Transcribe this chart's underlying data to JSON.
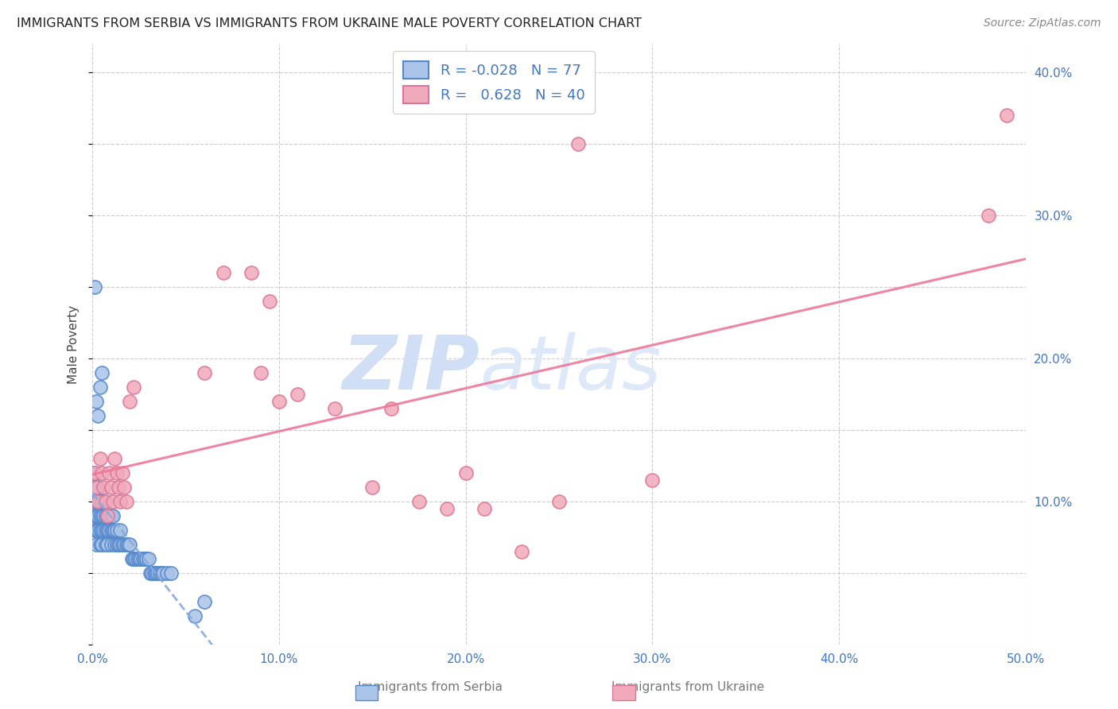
{
  "title": "IMMIGRANTS FROM SERBIA VS IMMIGRANTS FROM UKRAINE MALE POVERTY CORRELATION CHART",
  "source": "Source: ZipAtlas.com",
  "ylabel": "Male Poverty",
  "xlim": [
    0.0,
    0.5
  ],
  "ylim": [
    0.0,
    0.42
  ],
  "xticks": [
    0.0,
    0.1,
    0.2,
    0.3,
    0.4,
    0.5
  ],
  "xticklabels": [
    "0.0%",
    "10.0%",
    "20.0%",
    "30.0%",
    "40.0%",
    "50.0%"
  ],
  "yticks": [
    0.0,
    0.1,
    0.2,
    0.3,
    0.4
  ],
  "yticklabels_right": [
    "",
    "10.0%",
    "20.0%",
    "30.0%",
    "40.0%"
  ],
  "serbia_color": "#aac4e8",
  "ukraine_color": "#f0aabb",
  "serbia_edge": "#5588cc",
  "ukraine_edge": "#dd7799",
  "serbia_R": "-0.028",
  "serbia_N": "77",
  "ukraine_R": "0.628",
  "ukraine_N": "40",
  "serbia_line_color": "#88aadd",
  "ukraine_line_color": "#ee7799",
  "watermark_color": "#d0dff5",
  "serbia_x": [
    0.001,
    0.001,
    0.001,
    0.001,
    0.001,
    0.002,
    0.002,
    0.002,
    0.002,
    0.002,
    0.003,
    0.003,
    0.003,
    0.003,
    0.004,
    0.004,
    0.004,
    0.004,
    0.005,
    0.005,
    0.005,
    0.005,
    0.006,
    0.006,
    0.006,
    0.007,
    0.007,
    0.007,
    0.008,
    0.008,
    0.008,
    0.009,
    0.009,
    0.01,
    0.01,
    0.01,
    0.011,
    0.011,
    0.012,
    0.012,
    0.013,
    0.013,
    0.014,
    0.015,
    0.015,
    0.016,
    0.017,
    0.018,
    0.019,
    0.02,
    0.021,
    0.022,
    0.023,
    0.024,
    0.025,
    0.026,
    0.027,
    0.028,
    0.029,
    0.03,
    0.031,
    0.032,
    0.033,
    0.034,
    0.035,
    0.036,
    0.037,
    0.038,
    0.04,
    0.042,
    0.001,
    0.002,
    0.003,
    0.004,
    0.005,
    0.055,
    0.06
  ],
  "serbia_y": [
    0.08,
    0.09,
    0.1,
    0.11,
    0.12,
    0.07,
    0.08,
    0.09,
    0.1,
    0.11,
    0.08,
    0.09,
    0.1,
    0.11,
    0.07,
    0.08,
    0.09,
    0.1,
    0.07,
    0.08,
    0.09,
    0.1,
    0.08,
    0.09,
    0.1,
    0.07,
    0.08,
    0.09,
    0.07,
    0.08,
    0.09,
    0.08,
    0.09,
    0.07,
    0.08,
    0.09,
    0.08,
    0.09,
    0.07,
    0.08,
    0.07,
    0.08,
    0.07,
    0.07,
    0.08,
    0.07,
    0.07,
    0.07,
    0.07,
    0.07,
    0.06,
    0.06,
    0.06,
    0.06,
    0.06,
    0.06,
    0.06,
    0.06,
    0.06,
    0.06,
    0.05,
    0.05,
    0.05,
    0.05,
    0.05,
    0.05,
    0.05,
    0.05,
    0.05,
    0.05,
    0.25,
    0.17,
    0.16,
    0.18,
    0.19,
    0.02,
    0.03
  ],
  "ukraine_x": [
    0.001,
    0.002,
    0.003,
    0.004,
    0.005,
    0.006,
    0.007,
    0.008,
    0.009,
    0.01,
    0.011,
    0.012,
    0.013,
    0.014,
    0.015,
    0.016,
    0.017,
    0.018,
    0.02,
    0.022,
    0.06,
    0.07,
    0.085,
    0.09,
    0.095,
    0.1,
    0.11,
    0.13,
    0.15,
    0.16,
    0.175,
    0.19,
    0.2,
    0.21,
    0.23,
    0.25,
    0.26,
    0.3,
    0.48,
    0.49
  ],
  "ukraine_y": [
    0.12,
    0.11,
    0.1,
    0.13,
    0.12,
    0.11,
    0.1,
    0.09,
    0.12,
    0.11,
    0.1,
    0.13,
    0.12,
    0.11,
    0.1,
    0.12,
    0.11,
    0.1,
    0.17,
    0.18,
    0.19,
    0.26,
    0.26,
    0.19,
    0.24,
    0.17,
    0.175,
    0.165,
    0.11,
    0.165,
    0.1,
    0.095,
    0.12,
    0.095,
    0.065,
    0.1,
    0.35,
    0.115,
    0.3,
    0.37
  ]
}
